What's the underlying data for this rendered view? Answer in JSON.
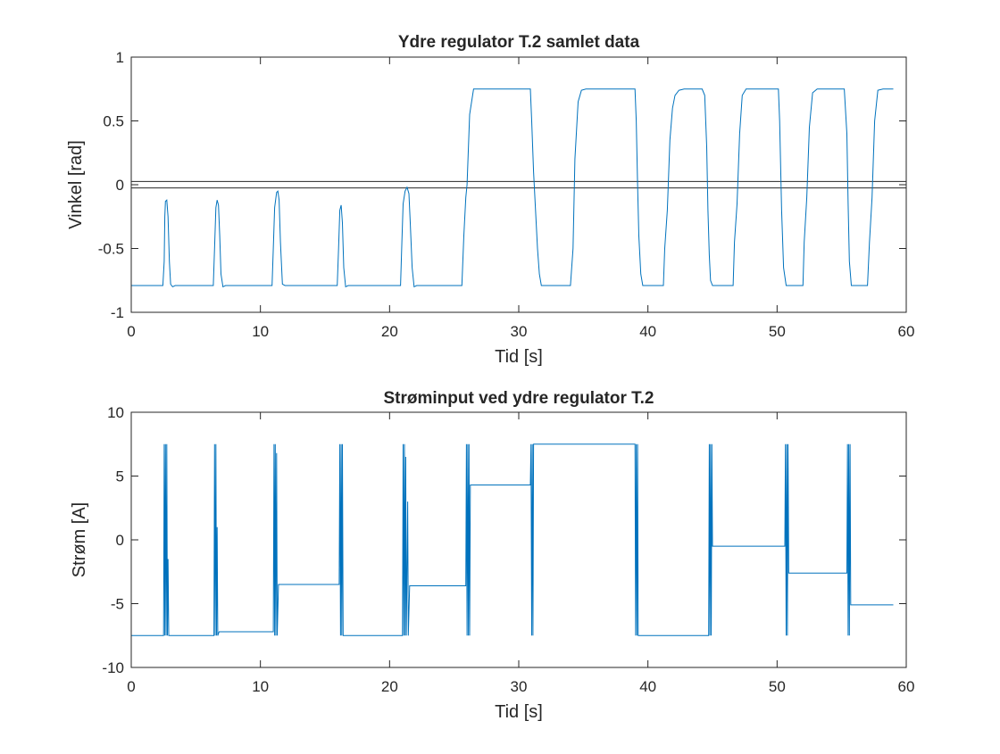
{
  "chart_data": [
    {
      "type": "line",
      "title": "Ydre regulator T.2 samlet data",
      "xlabel": "Tid [s]",
      "ylabel": "Vinkel [rad]",
      "xlim": [
        0,
        60
      ],
      "ylim": [
        -1,
        1
      ],
      "xticks": [
        0,
        10,
        20,
        30,
        40,
        50,
        60
      ],
      "yticks": [
        -1,
        -0.5,
        0,
        0.5,
        1
      ],
      "xtick_labels": [
        "0",
        "10",
        "20",
        "30",
        "40",
        "50",
        "60"
      ],
      "ytick_labels": [
        "-1",
        "-0.5",
        "0",
        "0.5",
        "1"
      ],
      "grid": false,
      "reference_lines": [
        0.025,
        -0.025
      ],
      "color": "#0072BD",
      "series": [
        {
          "x": [
            0,
            2.45,
            2.55,
            2.6,
            2.65,
            2.75,
            2.85,
            2.95,
            3.05,
            3.2,
            3.4,
            6.35,
            6.45,
            6.55,
            6.65,
            6.75,
            6.85,
            6.95,
            7.1,
            7.3,
            10.9,
            11.0,
            11.1,
            11.25,
            11.35,
            11.45,
            11.55,
            11.7,
            11.9,
            15.95,
            16.05,
            16.15,
            16.25,
            16.35,
            16.45,
            16.6,
            16.8,
            20.85,
            20.95,
            21.05,
            21.2,
            21.35,
            21.5,
            21.6,
            21.75,
            21.9,
            22.1,
            25.6,
            25.75,
            25.9,
            26.0,
            26.2,
            26.5,
            27.5,
            29.0,
            30.5,
            30.9,
            31.0,
            31.15,
            31.3,
            31.45,
            31.6,
            31.75,
            32.0,
            34.0,
            34.2,
            34.35,
            34.6,
            34.85,
            35.2,
            36.5,
            38.0,
            39.0,
            39.1,
            39.2,
            39.3,
            39.45,
            39.6,
            39.75,
            40.0,
            41.2,
            41.3,
            41.5,
            41.7,
            41.9,
            42.1,
            42.4,
            42.8,
            43.5,
            44.2,
            44.4,
            44.55,
            44.65,
            44.75,
            44.85,
            45.0,
            45.2,
            45.5,
            46.6,
            46.7,
            46.9,
            47.1,
            47.3,
            47.6,
            48.1,
            48.8,
            50.1,
            50.2,
            50.35,
            50.5,
            50.7,
            51.0,
            52.0,
            52.1,
            52.3,
            52.5,
            52.75,
            53.1,
            53.6,
            54.5,
            55.2,
            55.4,
            55.5,
            55.6,
            55.75,
            55.9,
            56.2,
            57.0,
            57.15,
            57.35,
            57.55,
            57.8,
            58.2,
            59.0
          ],
          "y": [
            -0.79,
            -0.79,
            -0.6,
            -0.25,
            -0.13,
            -0.12,
            -0.25,
            -0.6,
            -0.78,
            -0.8,
            -0.79,
            -0.79,
            -0.5,
            -0.18,
            -0.12,
            -0.16,
            -0.4,
            -0.7,
            -0.8,
            -0.79,
            -0.79,
            -0.5,
            -0.18,
            -0.06,
            -0.05,
            -0.12,
            -0.45,
            -0.78,
            -0.79,
            -0.79,
            -0.5,
            -0.2,
            -0.16,
            -0.3,
            -0.65,
            -0.8,
            -0.79,
            -0.79,
            -0.45,
            -0.15,
            -0.05,
            -0.02,
            -0.07,
            -0.3,
            -0.65,
            -0.8,
            -0.79,
            -0.79,
            -0.4,
            -0.1,
            0.0,
            0.55,
            0.75,
            0.75,
            0.75,
            0.75,
            0.75,
            0.5,
            0.1,
            -0.2,
            -0.5,
            -0.7,
            -0.79,
            -0.79,
            -0.79,
            -0.5,
            0.2,
            0.65,
            0.74,
            0.75,
            0.75,
            0.75,
            0.75,
            0.5,
            0.0,
            -0.4,
            -0.7,
            -0.79,
            -0.79,
            -0.79,
            -0.79,
            -0.5,
            -0.2,
            0.35,
            0.6,
            0.7,
            0.74,
            0.75,
            0.75,
            0.75,
            0.7,
            0.3,
            -0.2,
            -0.55,
            -0.75,
            -0.79,
            -0.79,
            -0.79,
            -0.79,
            -0.45,
            -0.15,
            0.4,
            0.7,
            0.75,
            0.75,
            0.75,
            0.75,
            0.5,
            -0.2,
            -0.65,
            -0.79,
            -0.79,
            -0.79,
            -0.45,
            -0.1,
            0.45,
            0.72,
            0.75,
            0.75,
            0.75,
            0.75,
            0.4,
            -0.15,
            -0.6,
            -0.79,
            -0.79,
            -0.79,
            -0.79,
            -0.45,
            -0.1,
            0.5,
            0.74,
            0.75,
            0.75
          ]
        }
      ]
    },
    {
      "type": "line",
      "title": "Strøminput ved ydre regulator T.2",
      "xlabel": "Tid [s]",
      "ylabel": "Strøm [A]",
      "xlim": [
        0,
        60
      ],
      "ylim": [
        -10,
        10
      ],
      "xticks": [
        0,
        10,
        20,
        30,
        40,
        50,
        60
      ],
      "yticks": [
        -10,
        -5,
        0,
        5,
        10
      ],
      "xtick_labels": [
        "0",
        "10",
        "20",
        "30",
        "40",
        "50",
        "60"
      ],
      "ytick_labels": [
        "-10",
        "-5",
        "0",
        "5",
        "10"
      ],
      "grid": false,
      "color": "#0072BD",
      "series": [
        {
          "x": [
            0,
            2.5,
            2.55,
            2.6,
            2.65,
            2.7,
            2.75,
            2.8,
            2.85,
            2.9,
            3.0,
            3.05,
            6.4,
            6.45,
            6.5,
            6.55,
            6.6,
            6.65,
            6.7,
            6.8,
            6.85,
            11.0,
            11.05,
            11.1,
            11.15,
            11.2,
            11.25,
            11.3,
            11.4,
            11.45,
            16.1,
            16.15,
            16.2,
            16.25,
            16.3,
            16.35,
            16.4,
            21.0,
            21.05,
            21.1,
            21.15,
            21.2,
            21.25,
            21.3,
            21.4,
            21.45,
            21.55,
            21.6,
            25.9,
            25.95,
            26.0,
            26.05,
            26.1,
            26.15,
            26.2,
            26.25,
            30.9,
            30.95,
            31.0,
            31.05,
            31.1,
            31.15,
            31.2,
            39.0,
            39.05,
            39.1,
            39.15,
            39.2,
            39.25,
            39.3,
            44.7,
            44.75,
            44.8,
            44.85,
            44.9,
            44.95,
            45.0,
            50.6,
            50.65,
            50.7,
            50.75,
            50.8,
            50.85,
            50.9,
            55.4,
            55.45,
            55.5,
            55.55,
            55.6,
            55.65,
            55.7,
            59.0
          ],
          "y": [
            -7.5,
            -7.5,
            7.5,
            -7.5,
            7.5,
            -7.5,
            7.5,
            -7.5,
            -1.5,
            -7.5,
            -7.5,
            -7.5,
            -7.5,
            7.5,
            -7.5,
            7.5,
            -7.5,
            1.0,
            -7.5,
            -7.2,
            -7.2,
            -7.2,
            7.5,
            -7.5,
            7.5,
            -7.5,
            6.8,
            -7.5,
            -3.5,
            -3.5,
            -3.5,
            7.5,
            -7.5,
            7.5,
            -7.5,
            7.5,
            -7.5,
            -7.5,
            7.5,
            -7.5,
            7.5,
            -7.5,
            6.5,
            -7.5,
            3.0,
            -7.5,
            -3.6,
            -3.6,
            -3.6,
            7.5,
            -7.5,
            7.5,
            -7.5,
            7.5,
            -7.5,
            4.3,
            4.3,
            7.5,
            -7.5,
            7.5,
            -7.5,
            7.5,
            7.5,
            7.5,
            -7.5,
            7.5,
            -7.5,
            7.5,
            -7.5,
            -7.5,
            -7.5,
            7.5,
            -7.5,
            7.5,
            -7.5,
            7.5,
            -0.5,
            -0.5,
            7.5,
            -7.5,
            7.5,
            -7.5,
            7.5,
            -2.6,
            -2.6,
            7.5,
            -7.5,
            7.5,
            -7.5,
            7.5,
            -5.1,
            -5.1
          ]
        }
      ]
    }
  ]
}
